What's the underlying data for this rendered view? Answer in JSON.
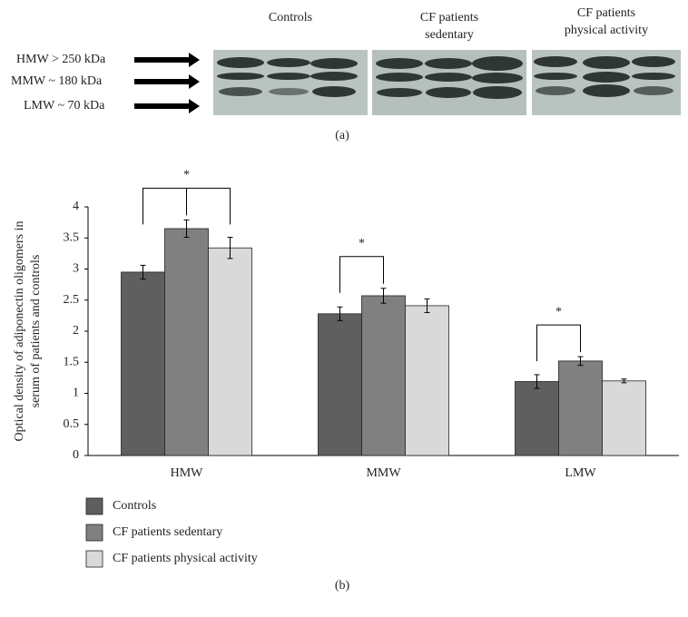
{
  "blot": {
    "markers": [
      "HMW > 250 kDa",
      "MMW ~  180 kDa",
      "LMW ~  70 kDa"
    ],
    "groups": [
      [
        "Controls"
      ],
      [
        "CF patients",
        "sedentary"
      ],
      [
        "CF patients",
        "physical activity"
      ]
    ],
    "caption": "(a)"
  },
  "chart_data": {
    "type": "bar",
    "ylabel": [
      "Optical density of adiponectin oligomers in",
      "serum of patients and controls"
    ],
    "categories": [
      "HMW",
      "MMW",
      "LMW"
    ],
    "series": [
      {
        "name": "Controls",
        "color": "#5f5f5f",
        "values": [
          2.95,
          2.28,
          1.19
        ],
        "errors": [
          0.11,
          0.11,
          0.11
        ]
      },
      {
        "name": "CF patients sedentary",
        "color": "#808080",
        "values": [
          3.65,
          2.57,
          1.52
        ],
        "errors": [
          0.14,
          0.12,
          0.07
        ]
      },
      {
        "name": "CF patients physical activity",
        "color": "#d9d9d9",
        "values": [
          3.34,
          2.41,
          1.2
        ],
        "errors": [
          0.17,
          0.11,
          0.03
        ]
      }
    ],
    "ylim": [
      0,
      4
    ],
    "yticks": [
      0,
      0.5,
      1,
      1.5,
      2,
      2.5,
      3,
      3.5,
      4
    ],
    "annotations": [
      "*",
      "*",
      "*"
    ],
    "caption": "(b)"
  }
}
